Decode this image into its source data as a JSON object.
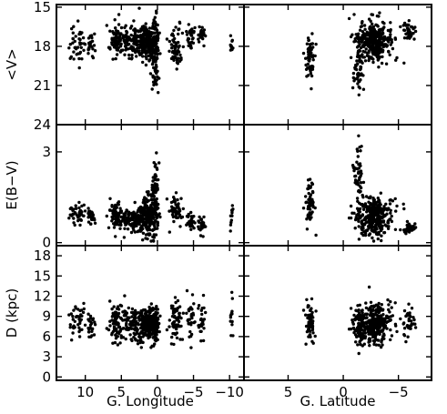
{
  "chart_data": {
    "type": "scatter",
    "layout": "3 rows x 2 columns, shared x-axes per column, shared y-axes per row",
    "columns": [
      {
        "xlabel": "G. Longitude",
        "xlim": [
          14,
          -12
        ],
        "xticks": [
          10,
          5,
          0,
          -5,
          -10
        ],
        "xticklabels": [
          "10",
          "5",
          "0",
          "−5",
          "−10"
        ]
      },
      {
        "xlabel": "G. Latitude",
        "xlim": [
          9,
          -8
        ],
        "xticks": [
          5,
          0,
          -5
        ],
        "xticklabels": [
          "5",
          "0",
          "−5"
        ]
      }
    ],
    "rows": [
      {
        "ylabel": "<V>",
        "ylim": [
          24,
          14.8
        ],
        "inverted": true,
        "yticks": [
          15,
          18,
          21,
          24
        ],
        "yticklabels": [
          "15",
          "18",
          "21",
          "24"
        ]
      },
      {
        "ylabel": "E(B−V)",
        "ylim": [
          -0.1,
          3.9
        ],
        "yticks": [
          0,
          3
        ],
        "yticklabels": [
          "0",
          "3"
        ]
      },
      {
        "ylabel": "D (kpc)",
        "ylim": [
          -0.5,
          19.5
        ],
        "yticks": [
          0,
          3,
          6,
          9,
          12,
          15,
          18
        ],
        "yticklabels": [
          "0",
          "3",
          "6",
          "9",
          "12",
          "15",
          "18"
        ]
      }
    ],
    "longitude_clusters": [
      {
        "center": 11.2,
        "spread": 0.6,
        "n": 40,
        "V": [
          17.9,
          0.7
        ],
        "EBV": [
          0.95,
          0.18
        ],
        "D": [
          8.1,
          1.4
        ]
      },
      {
        "center": 9.2,
        "spread": 0.25,
        "n": 25,
        "V": [
          17.8,
          0.5
        ],
        "EBV": [
          0.85,
          0.15
        ],
        "D": [
          7.5,
          1.1
        ]
      },
      {
        "center": 5.8,
        "spread": 0.45,
        "n": 70,
        "V": [
          17.6,
          0.6
        ],
        "EBV": [
          0.9,
          0.2
        ],
        "D": [
          8.0,
          1.4
        ]
      },
      {
        "center": 3.2,
        "spread": 1.2,
        "n": 130,
        "V": [
          17.5,
          0.6
        ],
        "EBV": [
          0.8,
          0.22
        ],
        "D": [
          7.8,
          1.3
        ]
      },
      {
        "center": 1.2,
        "spread": 0.6,
        "n": 170,
        "V": [
          17.8,
          0.7
        ],
        "EBV": [
          0.85,
          0.35
        ],
        "D": [
          7.8,
          1.2
        ]
      },
      {
        "center": 0.3,
        "spread": 0.25,
        "n": 90,
        "V": [
          18.4,
          1.4
        ],
        "EBV": [
          1.6,
          0.6
        ],
        "D": [
          8.0,
          1.3
        ]
      },
      {
        "center": -2.5,
        "spread": 0.45,
        "n": 60,
        "V": [
          18.2,
          0.7
        ],
        "EBV": [
          1.1,
          0.2
        ],
        "D": [
          8.2,
          1.5
        ]
      },
      {
        "center": -4.7,
        "spread": 0.25,
        "n": 30,
        "V": [
          17.3,
          0.6
        ],
        "EBV": [
          0.7,
          0.15
        ],
        "D": [
          8.4,
          1.7
        ]
      },
      {
        "center": -6.1,
        "spread": 0.3,
        "n": 25,
        "V": [
          17.0,
          0.4
        ],
        "EBV": [
          0.6,
          0.15
        ],
        "D": [
          8.6,
          1.3
        ]
      },
      {
        "center": -10.3,
        "spread": 0.15,
        "n": 12,
        "V": [
          17.8,
          0.5
        ],
        "EBV": [
          0.9,
          0.2
        ],
        "D": [
          8.2,
          1.5
        ]
      }
    ],
    "latitude_clusters": [
      {
        "center": 3.0,
        "spread": 0.2,
        "n": 60,
        "V": [
          18.9,
          0.9
        ],
        "EBV": [
          1.3,
          0.35
        ],
        "D": [
          8.0,
          1.4
        ]
      },
      {
        "center": -1.4,
        "spread": 0.25,
        "n": 50,
        "V": [
          20.0,
          1.1
        ],
        "EBV": [
          2.1,
          0.5
        ],
        "D": [
          7.2,
          1.3
        ]
      },
      {
        "center": -2.8,
        "spread": 0.8,
        "n": 330,
        "V": [
          17.6,
          0.8
        ],
        "EBV": [
          0.85,
          0.3
        ],
        "D": [
          8.0,
          1.5
        ]
      },
      {
        "center": -6.0,
        "spread": 0.25,
        "n": 40,
        "V": [
          16.9,
          0.4
        ],
        "EBV": [
          0.45,
          0.1
        ],
        "D": [
          8.5,
          1.1
        ]
      }
    ]
  }
}
